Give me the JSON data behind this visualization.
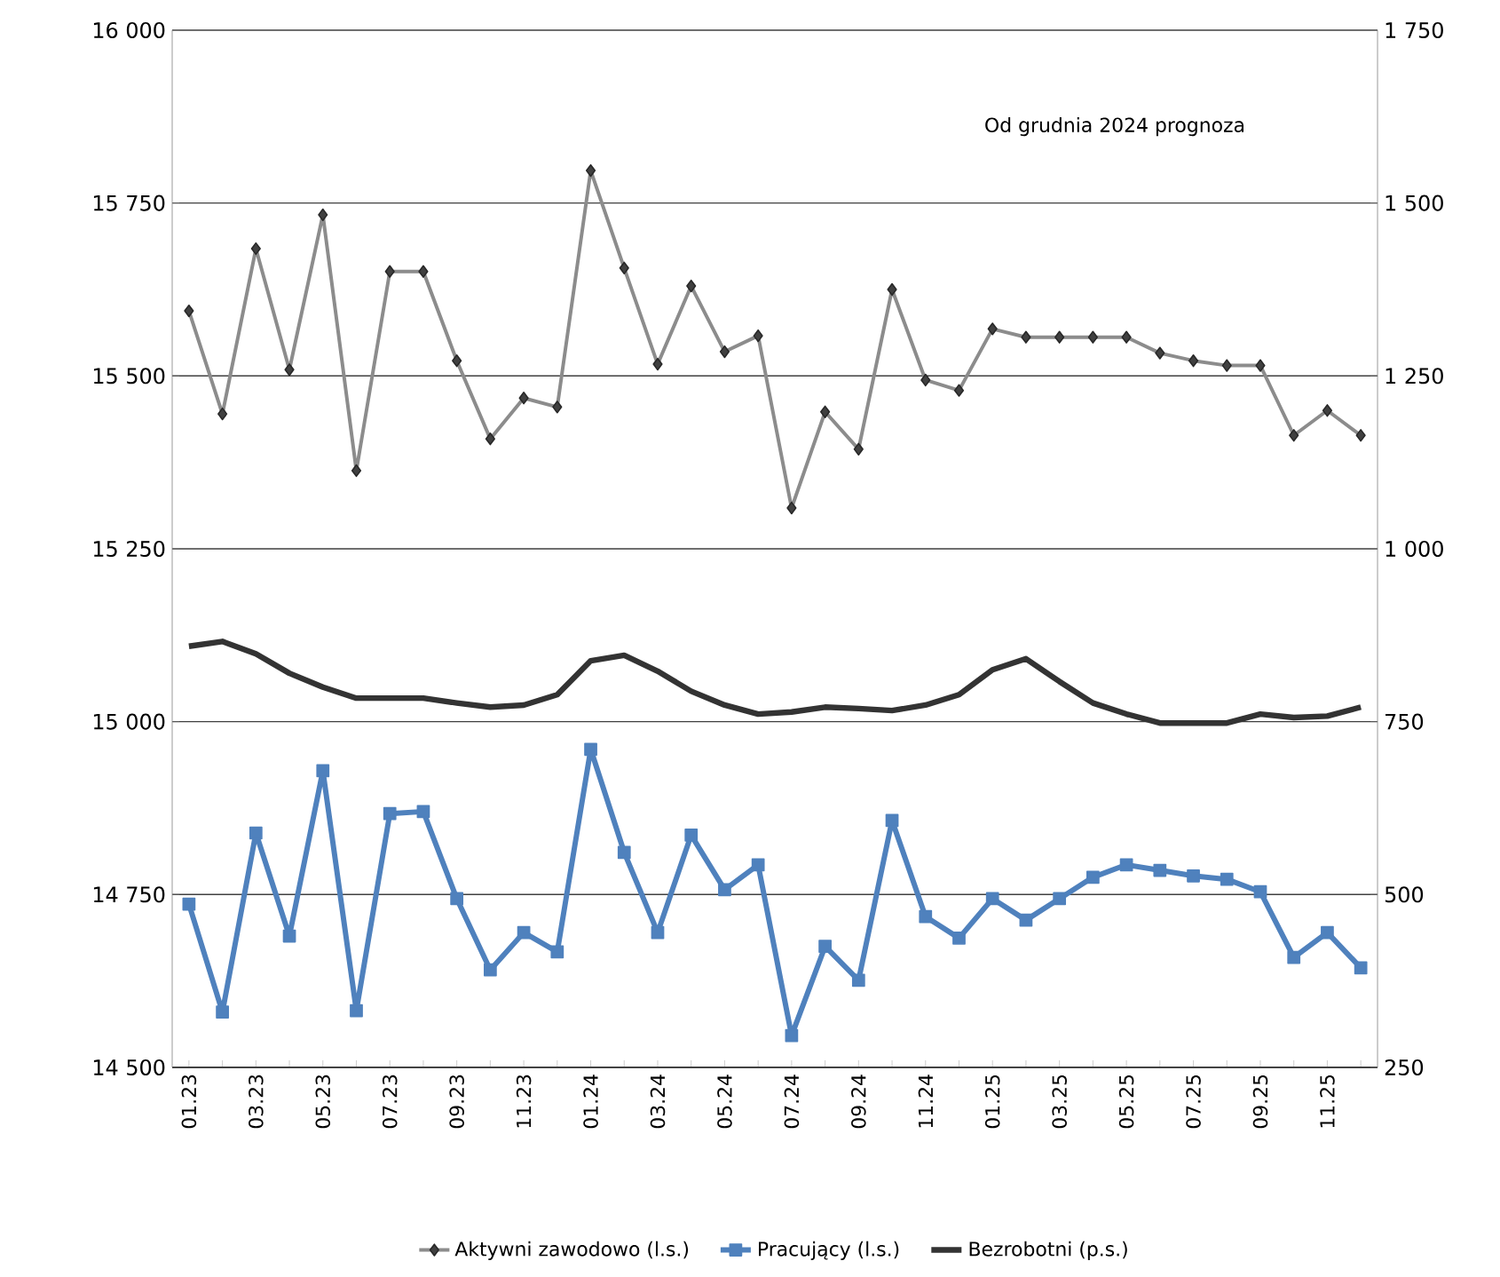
{
  "chart_data": {
    "type": "line",
    "categories": [
      "01.23",
      null,
      "03.23",
      null,
      "05.23",
      null,
      "07.23",
      null,
      "09.23",
      null,
      "11.23",
      null,
      "01.24",
      null,
      "03.24",
      null,
      "05.24",
      null,
      "07.24",
      null,
      "09.24",
      null,
      "11.24",
      null,
      "01.25",
      null,
      "03.25",
      null,
      "05.25",
      null,
      "07.25",
      null,
      "09.25",
      null,
      "11.25",
      null
    ],
    "series": [
      {
        "name": "Aktywni zawodowo (l.s.)",
        "color": "#8c8c8c",
        "marker": "diamond",
        "values": [
          15594,
          15445,
          15684,
          15509,
          15733,
          15363,
          15651,
          15651,
          15522,
          15409,
          15468,
          15455,
          15797,
          15656,
          15517,
          15630,
          15535,
          15558,
          15309,
          15448,
          15394,
          15625,
          15494,
          15479,
          15568,
          15556,
          15556,
          15556,
          15556,
          15533,
          15522,
          15515,
          15515,
          15414,
          15450,
          15414
        ]
      },
      {
        "name": "Pracujący (l.s.)",
        "color": "#4f81bd",
        "marker": "square",
        "values": [
          14736,
          14580,
          14839,
          14690,
          14929,
          14582,
          14867,
          14870,
          14744,
          14641,
          14695,
          14667,
          14960,
          14811,
          14695,
          14836,
          14757,
          14793,
          14546,
          14675,
          14626,
          14857,
          14718,
          14687,
          14744,
          14713,
          14744,
          14775,
          14793,
          14785,
          14777,
          14772,
          14754,
          14659,
          14695,
          14644
        ]
      },
      {
        "name": "Bezrobotni (p.s.)",
        "color": "#333333",
        "marker": "none",
        "axis": "y2",
        "values": [
          859,
          866,
          848,
          820,
          800,
          784,
          784,
          784,
          777,
          771,
          774,
          789,
          838,
          846,
          823,
          794,
          774,
          761,
          764,
          771,
          769,
          766,
          774,
          789,
          825,
          841,
          808,
          777,
          761,
          748,
          748,
          748,
          761,
          756,
          758,
          771
        ]
      }
    ],
    "ylim": [
      14500,
      16000
    ],
    "yticks": [
      {
        "value": 14500,
        "label": "14 500"
      },
      {
        "value": 14750,
        "label": "14 750"
      },
      {
        "value": 15000,
        "label": "15 000"
      },
      {
        "value": 15250,
        "label": "15 250"
      },
      {
        "value": 15500,
        "label": "15 500"
      },
      {
        "value": 15750,
        "label": "15 750"
      },
      {
        "value": 16000,
        "label": "16 000"
      }
    ],
    "y2lim": [
      250,
      1750
    ],
    "y2ticks": [
      250,
      500,
      750,
      {
        "value": 1000,
        "label": "1 000"
      },
      {
        "value": 1250,
        "label": "1 250"
      },
      {
        "value": 1500,
        "label": "1 500"
      },
      {
        "value": 1750,
        "label": "1 750"
      }
    ],
    "grid": "y",
    "legend": "bottom",
    "annotations": [
      "Od grudnia 2024 prognoza"
    ]
  }
}
